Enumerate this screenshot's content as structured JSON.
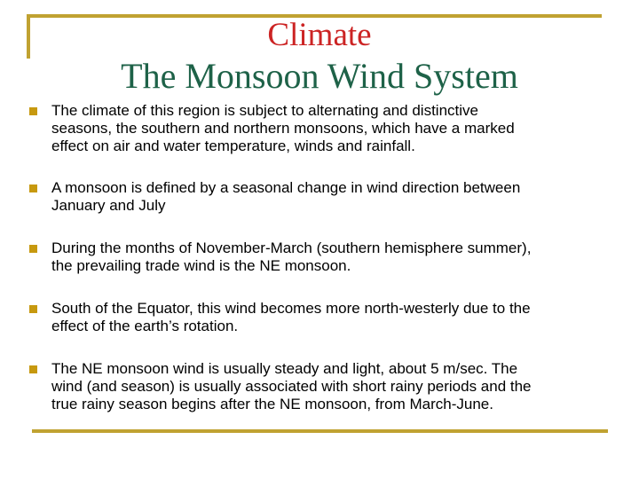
{
  "slide": {
    "title_line1": "Climate",
    "title_line2": "The Monsoon Wind System"
  },
  "bullets": [
    {
      "text": "The climate of this region is subject to alternating and distinctive\nseasons, the southern and northern monsoons, which have a marked\neffect on air and water temperature, winds and rainfall."
    },
    {
      "text": "A monsoon is defined by a seasonal change in wind direction between\nJanuary and July"
    },
    {
      "text": "During the months of November-March (southern hemisphere summer),\nthe prevailing trade wind is the NE monsoon."
    },
    {
      "text": "South of the Equator, this wind becomes more north-westerly due to the\neffect of the earth’s rotation."
    },
    {
      "text": "The NE monsoon wind is usually steady and light, about 5 m/sec. The\nwind (and season) is usually associated with short rainy periods and the\ntrue rainy season begins after the NE monsoon, from March-June."
    }
  ],
  "colors": {
    "title_red": "#CC2424",
    "title_green": "#1E6248",
    "frame_gold": "#C0A231",
    "bullet_gold": "#C7990F",
    "body_text": "#000000"
  }
}
